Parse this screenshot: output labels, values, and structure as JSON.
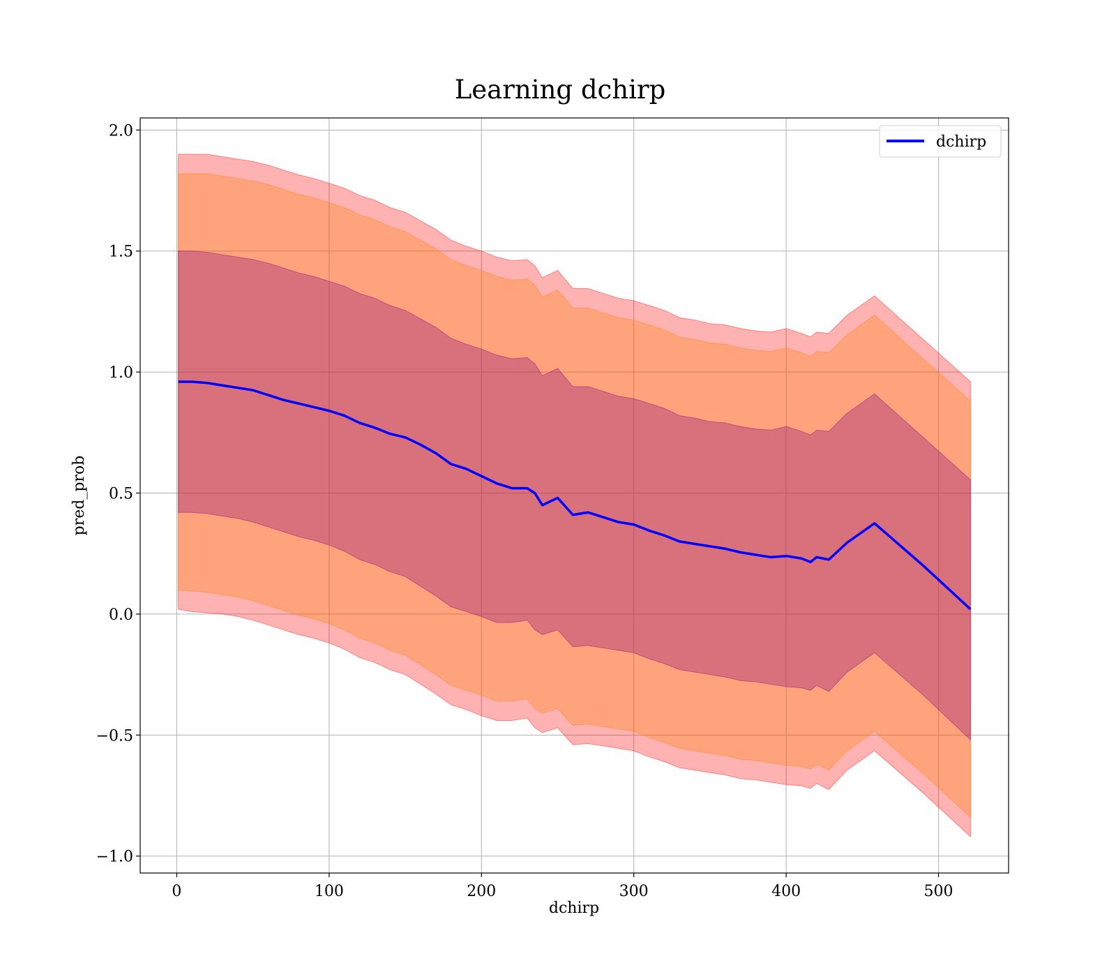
{
  "chart_data": {
    "type": "area",
    "title": "Learning dchirp",
    "xlabel": "dchirp",
    "ylabel": "pred_prob",
    "xlim": [
      -24,
      546
    ],
    "ylim": [
      -1.07,
      2.05
    ],
    "grid": true,
    "legend_position": "top-right",
    "x_ticks": [
      0,
      100,
      200,
      300,
      400,
      500
    ],
    "x_tick_labels": [
      "0",
      "100",
      "200",
      "300",
      "400",
      "500"
    ],
    "y_ticks": [
      -1.0,
      -0.5,
      0.0,
      0.5,
      1.0,
      1.5,
      2.0
    ],
    "y_tick_labels": [
      "−1.0",
      "−0.5",
      "0.0",
      "0.5",
      "1.0",
      "1.5",
      "2.0"
    ],
    "mean": {
      "name": "dchirp",
      "color": "#0000ff",
      "x": [
        1,
        10,
        20,
        30,
        40,
        50,
        60,
        70,
        80,
        90,
        100,
        110,
        120,
        130,
        140,
        150,
        160,
        170,
        180,
        190,
        200,
        210,
        220,
        230,
        235,
        240,
        250,
        260,
        270,
        280,
        290,
        300,
        310,
        320,
        330,
        340,
        350,
        360,
        370,
        380,
        390,
        400,
        410,
        416,
        420,
        428,
        440,
        458,
        490,
        521
      ],
      "y": [
        0.96,
        0.96,
        0.955,
        0.945,
        0.935,
        0.925,
        0.905,
        0.885,
        0.87,
        0.855,
        0.84,
        0.82,
        0.79,
        0.77,
        0.745,
        0.73,
        0.7,
        0.665,
        0.62,
        0.6,
        0.57,
        0.54,
        0.52,
        0.52,
        0.5,
        0.45,
        0.48,
        0.41,
        0.42,
        0.4,
        0.38,
        0.37,
        0.345,
        0.325,
        0.3,
        0.29,
        0.28,
        0.27,
        0.255,
        0.245,
        0.235,
        0.24,
        0.23,
        0.215,
        0.235,
        0.225,
        0.295,
        0.375,
        0.2,
        0.02
      ]
    },
    "bands": [
      {
        "name": "band-outer",
        "color": "#ff0000",
        "opacity": 0.3,
        "lower": [
          0.02,
          0.01,
          0.005,
          0.0,
          -0.01,
          -0.025,
          -0.045,
          -0.065,
          -0.085,
          -0.1,
          -0.12,
          -0.145,
          -0.18,
          -0.2,
          -0.23,
          -0.25,
          -0.29,
          -0.33,
          -0.375,
          -0.395,
          -0.42,
          -0.44,
          -0.44,
          -0.43,
          -0.47,
          -0.49,
          -0.47,
          -0.54,
          -0.535,
          -0.545,
          -0.555,
          -0.565,
          -0.59,
          -0.61,
          -0.635,
          -0.645,
          -0.655,
          -0.665,
          -0.68,
          -0.685,
          -0.695,
          -0.705,
          -0.71,
          -0.72,
          -0.7,
          -0.725,
          -0.645,
          -0.565,
          -0.74,
          -0.92
        ],
        "upper": [
          1.9,
          1.9,
          1.9,
          1.89,
          1.88,
          1.87,
          1.855,
          1.835,
          1.815,
          1.8,
          1.78,
          1.76,
          1.73,
          1.71,
          1.68,
          1.66,
          1.625,
          1.59,
          1.545,
          1.52,
          1.5,
          1.475,
          1.46,
          1.465,
          1.44,
          1.39,
          1.42,
          1.345,
          1.345,
          1.325,
          1.305,
          1.295,
          1.275,
          1.255,
          1.225,
          1.215,
          1.2,
          1.195,
          1.18,
          1.17,
          1.165,
          1.18,
          1.16,
          1.145,
          1.165,
          1.16,
          1.235,
          1.315,
          1.135,
          0.96
        ]
      },
      {
        "name": "band-middle",
        "color": "#ff8000",
        "opacity": 0.3,
        "lower": [
          0.1,
          0.095,
          0.09,
          0.08,
          0.07,
          0.055,
          0.035,
          0.015,
          -0.005,
          -0.02,
          -0.04,
          -0.065,
          -0.1,
          -0.12,
          -0.15,
          -0.17,
          -0.21,
          -0.25,
          -0.295,
          -0.315,
          -0.335,
          -0.36,
          -0.36,
          -0.35,
          -0.39,
          -0.41,
          -0.39,
          -0.46,
          -0.455,
          -0.465,
          -0.475,
          -0.485,
          -0.51,
          -0.53,
          -0.555,
          -0.565,
          -0.575,
          -0.585,
          -0.6,
          -0.605,
          -0.615,
          -0.625,
          -0.63,
          -0.64,
          -0.62,
          -0.645,
          -0.565,
          -0.485,
          -0.66,
          -0.84
        ],
        "upper": [
          1.82,
          1.82,
          1.82,
          1.81,
          1.8,
          1.79,
          1.775,
          1.755,
          1.735,
          1.72,
          1.7,
          1.68,
          1.65,
          1.63,
          1.6,
          1.58,
          1.545,
          1.51,
          1.465,
          1.44,
          1.42,
          1.395,
          1.38,
          1.385,
          1.36,
          1.31,
          1.34,
          1.265,
          1.265,
          1.245,
          1.225,
          1.215,
          1.195,
          1.175,
          1.145,
          1.135,
          1.12,
          1.115,
          1.1,
          1.09,
          1.085,
          1.1,
          1.08,
          1.065,
          1.085,
          1.08,
          1.155,
          1.235,
          1.055,
          0.88
        ]
      },
      {
        "name": "band-inner",
        "color": "#800080",
        "opacity": 0.3,
        "lower": [
          0.42,
          0.42,
          0.415,
          0.405,
          0.395,
          0.38,
          0.36,
          0.34,
          0.32,
          0.305,
          0.285,
          0.26,
          0.225,
          0.205,
          0.175,
          0.155,
          0.115,
          0.075,
          0.03,
          0.01,
          -0.01,
          -0.035,
          -0.035,
          -0.025,
          -0.065,
          -0.085,
          -0.065,
          -0.135,
          -0.13,
          -0.14,
          -0.15,
          -0.16,
          -0.185,
          -0.205,
          -0.23,
          -0.24,
          -0.25,
          -0.26,
          -0.275,
          -0.28,
          -0.29,
          -0.3,
          -0.305,
          -0.315,
          -0.295,
          -0.32,
          -0.24,
          -0.16,
          -0.335,
          -0.52
        ],
        "upper": [
          1.5,
          1.5,
          1.495,
          1.485,
          1.475,
          1.465,
          1.45,
          1.43,
          1.41,
          1.395,
          1.375,
          1.355,
          1.325,
          1.305,
          1.275,
          1.255,
          1.22,
          1.185,
          1.14,
          1.115,
          1.095,
          1.07,
          1.055,
          1.06,
          1.035,
          0.985,
          1.015,
          0.94,
          0.94,
          0.92,
          0.9,
          0.89,
          0.87,
          0.85,
          0.82,
          0.81,
          0.795,
          0.79,
          0.775,
          0.765,
          0.76,
          0.775,
          0.755,
          0.74,
          0.76,
          0.755,
          0.83,
          0.91,
          0.73,
          0.555
        ]
      }
    ],
    "legend": [
      {
        "label": "dchirp",
        "color": "#0000ff"
      }
    ]
  }
}
